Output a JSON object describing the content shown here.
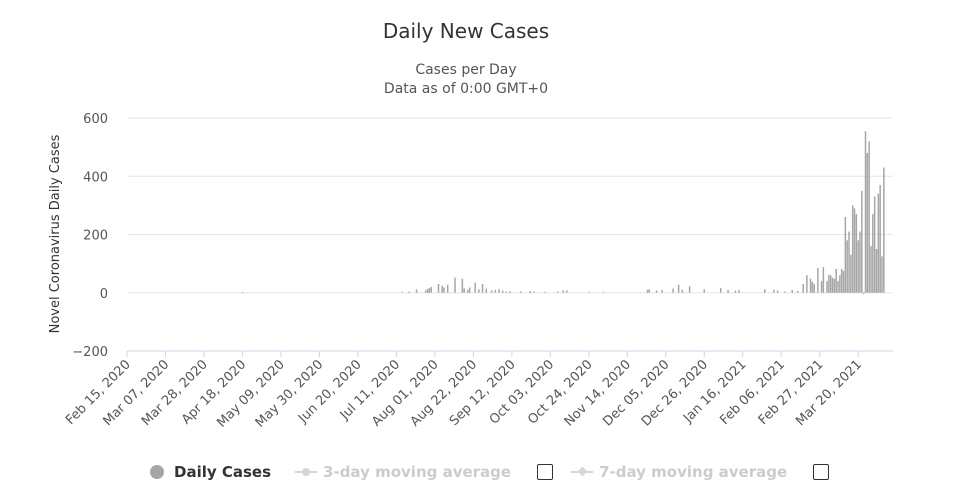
{
  "chart_data": {
    "type": "bar",
    "title": "Daily New Cases",
    "subtitle_lines": [
      "Cases per Day",
      "Data as of 0:00 GMT+0"
    ],
    "ylabel": "Novel Coronavirus Daily Cases",
    "ylim": [
      -200,
      600
    ],
    "yticks": [
      600,
      400,
      200,
      0,
      -200
    ],
    "x_start_date": "2020-02-15",
    "x_end_date": "2021-04-08",
    "xtick_labels": [
      "Feb 15, 2020",
      "Mar 07, 2020",
      "Mar 28, 2020",
      "Apr 18, 2020",
      "May 09, 2020",
      "May 30, 2020",
      "Jun 20, 2020",
      "Jul 11, 2020",
      "Aug 01, 2020",
      "Aug 22, 2020",
      "Sep 12, 2020",
      "Oct 03, 2020",
      "Oct 24, 2020",
      "Nov 14, 2020",
      "Dec 05, 2020",
      "Dec 26, 2020",
      "Jan 16, 2021",
      "Feb 06, 2021",
      "Feb 27, 2021",
      "Mar 20, 2021"
    ],
    "grid": true,
    "bar_color": "#a6a6a6",
    "series": [
      {
        "name": "Daily Cases",
        "points": [
          [
            "2020-04-18",
            2
          ],
          [
            "2020-07-14",
            3
          ],
          [
            "2020-07-18",
            4
          ],
          [
            "2020-07-22",
            12
          ],
          [
            "2020-07-27",
            8
          ],
          [
            "2020-07-28",
            13
          ],
          [
            "2020-07-29",
            16
          ],
          [
            "2020-07-30",
            20
          ],
          [
            "2020-08-03",
            30
          ],
          [
            "2020-08-05",
            24
          ],
          [
            "2020-08-06",
            18
          ],
          [
            "2020-08-08",
            28
          ],
          [
            "2020-08-12",
            52
          ],
          [
            "2020-08-16",
            48
          ],
          [
            "2020-08-17",
            15
          ],
          [
            "2020-08-19",
            10
          ],
          [
            "2020-08-20",
            18
          ],
          [
            "2020-08-23",
            35
          ],
          [
            "2020-08-25",
            12
          ],
          [
            "2020-08-27",
            30
          ],
          [
            "2020-08-29",
            14
          ],
          [
            "2020-09-01",
            8
          ],
          [
            "2020-09-03",
            10
          ],
          [
            "2020-09-05",
            12
          ],
          [
            "2020-09-07",
            8
          ],
          [
            "2020-09-09",
            4
          ],
          [
            "2020-09-11",
            5
          ],
          [
            "2020-09-17",
            5
          ],
          [
            "2020-09-22",
            6
          ],
          [
            "2020-09-24",
            4
          ],
          [
            "2020-09-30",
            3
          ],
          [
            "2020-10-07",
            4
          ],
          [
            "2020-10-10",
            9
          ],
          [
            "2020-10-12",
            8
          ],
          [
            "2020-10-24",
            3
          ],
          [
            "2020-11-01",
            3
          ],
          [
            "2020-11-25",
            10
          ],
          [
            "2020-11-26",
            12
          ],
          [
            "2020-11-30",
            8
          ],
          [
            "2020-12-03",
            10
          ],
          [
            "2020-12-09",
            14
          ],
          [
            "2020-12-12",
            28
          ],
          [
            "2020-12-14",
            10
          ],
          [
            "2020-12-18",
            22
          ],
          [
            "2020-12-26",
            12
          ],
          [
            "2021-01-04",
            16
          ],
          [
            "2021-01-08",
            10
          ],
          [
            "2021-01-12",
            7
          ],
          [
            "2021-01-14",
            9
          ],
          [
            "2021-01-28",
            12
          ],
          [
            "2021-02-02",
            10
          ],
          [
            "2021-02-04",
            8
          ],
          [
            "2021-02-08",
            4
          ],
          [
            "2021-02-12",
            10
          ],
          [
            "2021-02-15",
            6
          ],
          [
            "2021-02-18",
            30
          ],
          [
            "2021-02-20",
            60
          ],
          [
            "2021-02-22",
            48
          ],
          [
            "2021-02-23",
            38
          ],
          [
            "2021-02-24",
            30
          ],
          [
            "2021-02-26",
            85
          ],
          [
            "2021-02-28",
            40
          ],
          [
            "2021-03-01",
            88
          ],
          [
            "2021-03-03",
            40
          ],
          [
            "2021-03-04",
            62
          ],
          [
            "2021-03-05",
            60
          ],
          [
            "2021-03-06",
            52
          ],
          [
            "2021-03-07",
            48
          ],
          [
            "2021-03-08",
            82
          ],
          [
            "2021-03-09",
            40
          ],
          [
            "2021-03-10",
            60
          ],
          [
            "2021-03-11",
            82
          ],
          [
            "2021-03-12",
            75
          ],
          [
            "2021-03-13",
            260
          ],
          [
            "2021-03-14",
            180
          ],
          [
            "2021-03-15",
            210
          ],
          [
            "2021-03-16",
            130
          ],
          [
            "2021-03-17",
            300
          ],
          [
            "2021-03-18",
            290
          ],
          [
            "2021-03-19",
            270
          ],
          [
            "2021-03-20",
            180
          ],
          [
            "2021-03-21",
            210
          ],
          [
            "2021-03-22",
            350
          ],
          [
            "2021-03-23",
            -5
          ],
          [
            "2021-03-24",
            555
          ],
          [
            "2021-03-25",
            480
          ],
          [
            "2021-03-26",
            520
          ],
          [
            "2021-03-27",
            160
          ],
          [
            "2021-03-28",
            270
          ],
          [
            "2021-03-29",
            330
          ],
          [
            "2021-03-30",
            150
          ],
          [
            "2021-03-31",
            340
          ],
          [
            "2021-04-01",
            370
          ],
          [
            "2021-04-02",
            125
          ],
          [
            "2021-04-03",
            430
          ]
        ]
      }
    ]
  },
  "legend": {
    "items": [
      {
        "label": "Daily Cases",
        "active": true
      },
      {
        "label": "3-day moving average",
        "active": false
      },
      {
        "label": "7-day moving average",
        "active": false
      }
    ]
  }
}
